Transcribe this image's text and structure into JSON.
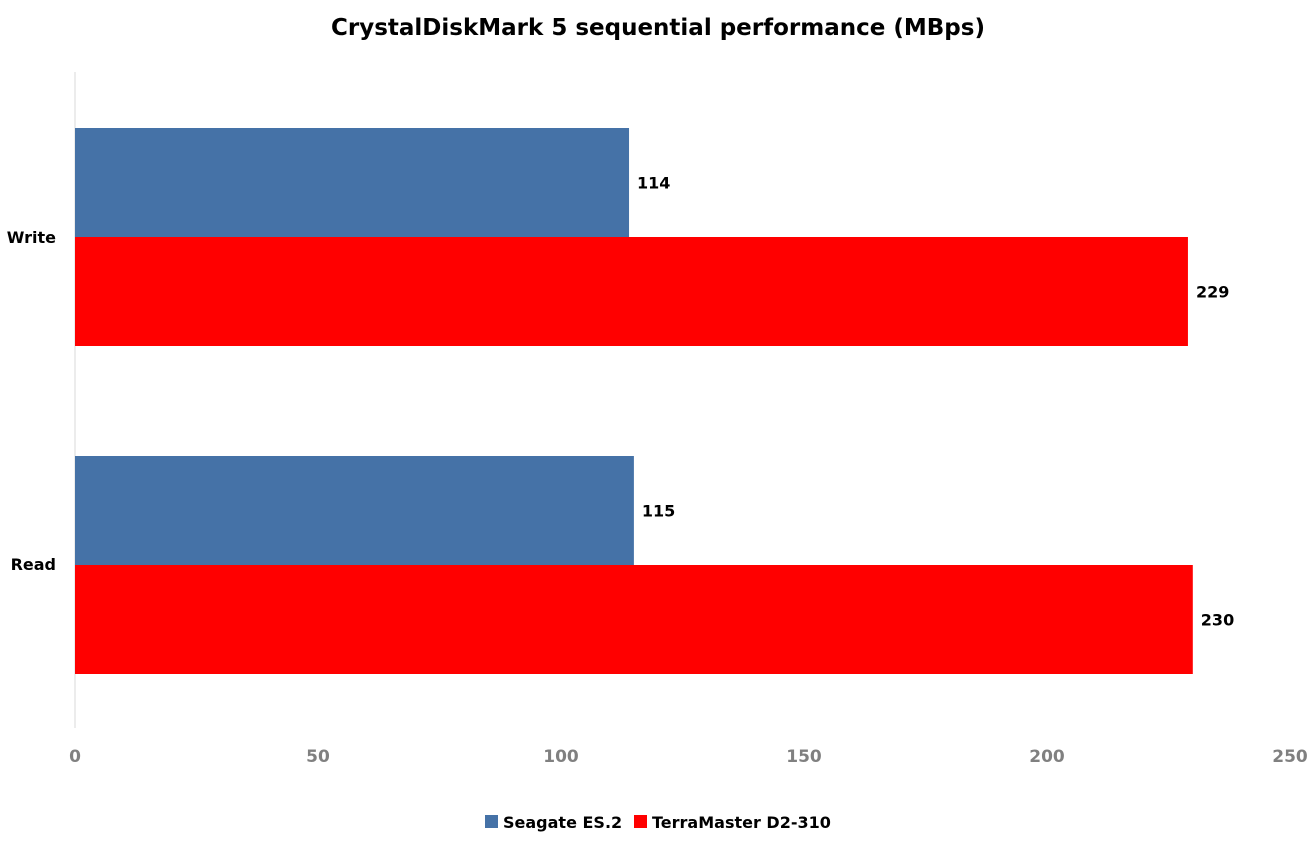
{
  "chart_data": {
    "type": "bar",
    "orientation": "horizontal",
    "title": "CrystalDiskMark 5 sequential performance (MBps)",
    "categories": [
      "Write",
      "Read"
    ],
    "series": [
      {
        "name": "Seagate ES.2",
        "values": [
          114,
          115
        ],
        "color": "#4572A7"
      },
      {
        "name": "TerraMaster D2-310",
        "values": [
          229,
          230
        ],
        "color": "#FF0000"
      }
    ],
    "xlim": [
      0,
      250
    ],
    "xticks": [
      "0",
      "50",
      "100",
      "150",
      "200",
      "250"
    ],
    "xlabel": "",
    "ylabel": "",
    "grid": false,
    "legend": "bottom"
  }
}
